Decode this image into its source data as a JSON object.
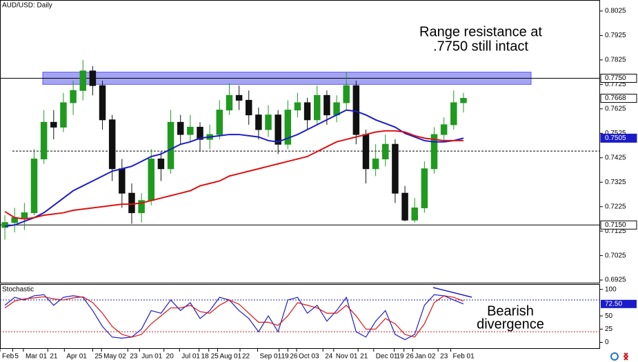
{
  "chart_data": [
    {
      "type": "candlestick",
      "title": "AUD/USD: Daily",
      "color_up": "#1f9a1f",
      "color_down": "#111111",
      "xlim": [
        -0.5,
        61
      ],
      "ylim": [
        0.6914,
        0.807
      ],
      "open": [
        0.714,
        0.716,
        0.718,
        0.72,
        0.742,
        0.757,
        0.755,
        0.765,
        0.77,
        0.778,
        0.772,
        0.758,
        0.738,
        0.728,
        0.72,
        0.725,
        0.742,
        0.738,
        0.757,
        0.752,
        0.755,
        0.75,
        0.752,
        0.762,
        0.768,
        0.766,
        0.76,
        0.754,
        0.76,
        0.748,
        0.762,
        0.765,
        0.758,
        0.768,
        0.76,
        0.765,
        0.772,
        0.752,
        0.738,
        0.742,
        0.748,
        0.728,
        0.717,
        0.722,
        0.738,
        0.752,
        0.756,
        0.765
      ],
      "high": [
        0.719,
        0.722,
        0.724,
        0.746,
        0.762,
        0.762,
        0.769,
        0.774,
        0.7825,
        0.78,
        0.774,
        0.76,
        0.742,
        0.732,
        0.728,
        0.746,
        0.745,
        0.762,
        0.76,
        0.76,
        0.757,
        0.756,
        0.766,
        0.773,
        0.772,
        0.77,
        0.763,
        0.764,
        0.762,
        0.766,
        0.769,
        0.767,
        0.772,
        0.77,
        0.768,
        0.7775,
        0.774,
        0.754,
        0.748,
        0.752,
        0.75,
        0.731,
        0.726,
        0.741,
        0.755,
        0.759,
        0.77,
        0.769
      ],
      "low": [
        0.709,
        0.712,
        0.713,
        0.719,
        0.74,
        0.75,
        0.753,
        0.76,
        0.766,
        0.768,
        0.754,
        0.733,
        0.722,
        0.7155,
        0.716,
        0.723,
        0.733,
        0.736,
        0.748,
        0.749,
        0.745,
        0.746,
        0.75,
        0.76,
        0.762,
        0.756,
        0.75,
        0.751,
        0.744,
        0.746,
        0.759,
        0.754,
        0.756,
        0.756,
        0.757,
        0.762,
        0.748,
        0.732,
        0.735,
        0.739,
        0.724,
        0.7165,
        0.716,
        0.72,
        0.736,
        0.749,
        0.754,
        0.761
      ],
      "close": [
        0.716,
        0.718,
        0.72,
        0.742,
        0.757,
        0.755,
        0.765,
        0.77,
        0.778,
        0.772,
        0.758,
        0.738,
        0.728,
        0.72,
        0.725,
        0.742,
        0.738,
        0.757,
        0.752,
        0.755,
        0.75,
        0.752,
        0.762,
        0.768,
        0.766,
        0.76,
        0.754,
        0.76,
        0.748,
        0.762,
        0.765,
        0.758,
        0.768,
        0.76,
        0.765,
        0.772,
        0.752,
        0.738,
        0.742,
        0.748,
        0.728,
        0.717,
        0.722,
        0.738,
        0.752,
        0.756,
        0.765,
        0.7668
      ],
      "series": [
        {
          "color": "#1c1cc8",
          "values": [
            0.7145,
            0.715,
            0.7165,
            0.718,
            0.72,
            0.723,
            0.726,
            0.729,
            0.731,
            0.733,
            0.735,
            0.737,
            0.738,
            0.739,
            0.741,
            0.743,
            0.744,
            0.746,
            0.748,
            0.749,
            0.7505,
            0.751,
            0.7515,
            0.752,
            0.752,
            0.7515,
            0.751,
            0.7495,
            0.749,
            0.7505,
            0.752,
            0.754,
            0.756,
            0.758,
            0.76,
            0.762,
            0.7615,
            0.76,
            0.758,
            0.7565,
            0.755,
            0.7525,
            0.751,
            0.7495,
            0.749,
            0.749,
            0.7495,
            0.7505
          ]
        },
        {
          "color": "#dd1111",
          "values": [
            0.7205,
            0.718,
            0.7175,
            0.718,
            0.719,
            0.7195,
            0.72,
            0.721,
            0.7215,
            0.722,
            0.7225,
            0.723,
            0.7235,
            0.7235,
            0.724,
            0.725,
            0.726,
            0.727,
            0.728,
            0.729,
            0.731,
            0.732,
            0.733,
            0.735,
            0.736,
            0.737,
            0.738,
            0.739,
            0.74,
            0.741,
            0.742,
            0.743,
            0.745,
            0.747,
            0.749,
            0.75,
            0.751,
            0.752,
            0.753,
            0.7535,
            0.7535,
            0.753,
            0.7515,
            0.7505,
            0.75,
            0.7495,
            0.7495,
            0.7495
          ]
        }
      ],
      "yticks": [
        0.8025,
        0.7925,
        0.7825,
        0.7725,
        0.7625,
        0.7525,
        0.7425,
        0.7325,
        0.7225,
        0.7125,
        0.7025,
        0.6925
      ],
      "xticks": [
        {
          "value": -0.5,
          "label": "Feb"
        },
        {
          "value": 0.8,
          "label": "5"
        },
        {
          "value": 1.9,
          "label": "Mar 01"
        },
        {
          "value": 4.4,
          "label": "21"
        },
        {
          "value": 6.1,
          "label": "Apr 01"
        },
        {
          "value": 9.0,
          "label": "25"
        },
        {
          "value": 9.9,
          "label": "May 02"
        },
        {
          "value": 12.6,
          "label": "23"
        },
        {
          "value": 13.8,
          "label": "Jun 01"
        },
        {
          "value": 16.3,
          "label": "20"
        },
        {
          "value": 17.9,
          "label": "Jul 01"
        },
        {
          "value": 19.9,
          "label": "18"
        },
        {
          "value": 20.9,
          "label": "25"
        },
        {
          "value": 21.8,
          "label": "Aug 01"
        },
        {
          "value": 24.1,
          "label": "22"
        },
        {
          "value": 25.9,
          "label": "Sep 01"
        },
        {
          "value": 28.1,
          "label": "19"
        },
        {
          "value": 29.0,
          "label": "26"
        },
        {
          "value": 29.9,
          "label": "Oct 03"
        },
        {
          "value": 32.6,
          "label": "24"
        },
        {
          "value": 33.7,
          "label": "Nov 01"
        },
        {
          "value": 36.2,
          "label": "21"
        },
        {
          "value": 37.8,
          "label": "Dec 01"
        },
        {
          "value": 39.9,
          "label": "19"
        },
        {
          "value": 40.9,
          "label": "26"
        },
        {
          "value": 41.8,
          "label": "Jan 02"
        },
        {
          "value": 44.4,
          "label": "23"
        },
        {
          "value": 45.7,
          "label": "Feb 01"
        }
      ],
      "zone": [
        0.7725,
        0.7775
      ],
      "levels": [
        {
          "value": 0.775,
          "label": "0.7750"
        },
        {
          "value": 0.715,
          "label": "0.7150"
        }
      ],
      "dashed_level": 0.7452,
      "markers": [
        {
          "value": 0.7668,
          "color": "#ffffff"
        },
        {
          "value": 0.7505,
          "color": "#1c1cc8"
        }
      ],
      "annotation": [
        "Range resistance at",
        ".7750 still intact"
      ]
    },
    {
      "type": "line",
      "title": "Stochastic",
      "ylim": [
        -11,
        110
      ],
      "yticks": [
        100,
        50,
        25,
        0
      ],
      "levels": [
        80,
        20
      ],
      "series": [
        {
          "color": "#1c1cc8",
          "values": [
            70,
            85,
            80,
            88,
            90,
            70,
            85,
            88,
            85,
            60,
            30,
            10,
            8,
            10,
            25,
            60,
            55,
            80,
            60,
            75,
            45,
            60,
            85,
            80,
            60,
            45,
            20,
            50,
            20,
            80,
            85,
            55,
            70,
            40,
            60,
            85,
            20,
            10,
            40,
            60,
            15,
            5,
            15,
            70,
            90,
            88,
            80,
            72.5
          ]
        },
        {
          "color": "#dd1111",
          "values": [
            65,
            78,
            82,
            84,
            86,
            82,
            80,
            84,
            86,
            75,
            55,
            30,
            15,
            10,
            15,
            35,
            50,
            65,
            65,
            70,
            58,
            55,
            70,
            80,
            72,
            55,
            38,
            38,
            32,
            50,
            75,
            70,
            65,
            55,
            55,
            70,
            50,
            25,
            25,
            45,
            35,
            15,
            10,
            35,
            75,
            88,
            85,
            78
          ]
        }
      ],
      "marker": {
        "value": 72.5,
        "label": "72.50"
      },
      "annotation": [
        "Bearish",
        "divergence"
      ]
    }
  ]
}
